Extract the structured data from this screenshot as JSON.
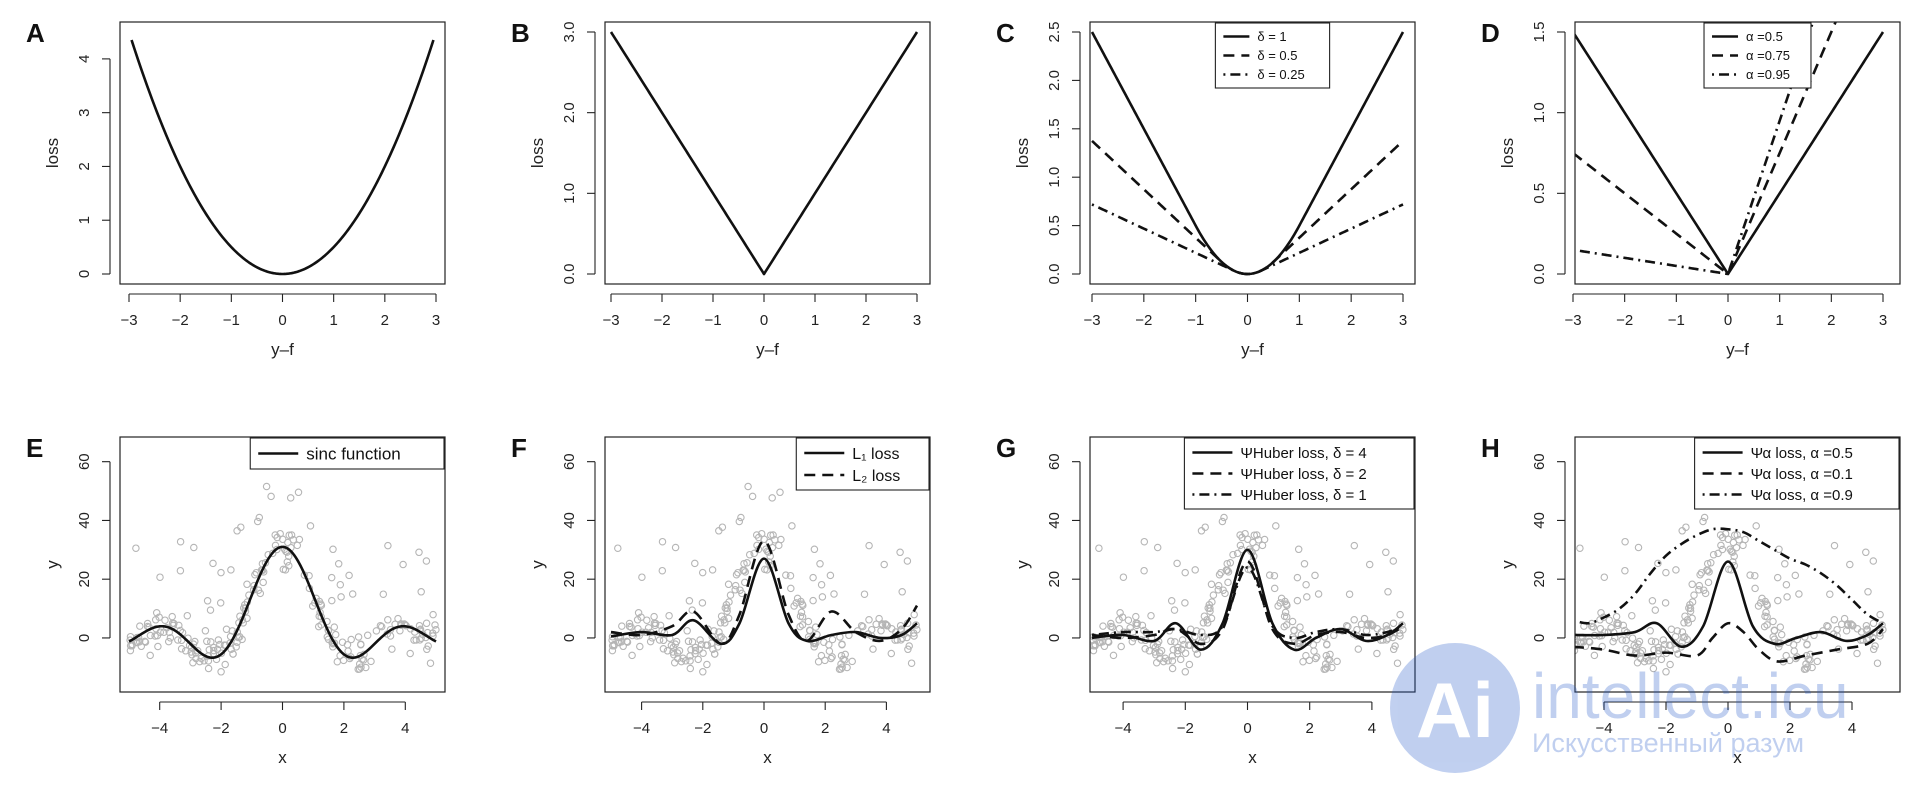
{
  "watermark": {
    "logo_letters": "Ai",
    "site": "intellect.icu",
    "tagline": "Искусственный разум"
  },
  "chart_data": [
    {
      "id": "A",
      "panel_label": "A",
      "type": "line",
      "xlabel": "y–f",
      "ylabel": "loss",
      "xlim": [
        -3,
        3
      ],
      "ylim": [
        0,
        4.5
      ],
      "xticks": [
        -3,
        -2,
        -1,
        0,
        1,
        2,
        3
      ],
      "xtick_labels": [
        "−3",
        "−2",
        "−1",
        "0",
        "1",
        "2",
        "3"
      ],
      "yticks": [
        0,
        1,
        2,
        3,
        4
      ],
      "ytick_labels": [
        "0",
        "1",
        "2",
        "3",
        "4"
      ],
      "series": [
        {
          "style": "solid",
          "function": "squared",
          "x": [
            -2.95,
            -2,
            -1,
            0,
            1,
            2,
            2.95
          ],
          "y": [
            4.35,
            2.0,
            0.5,
            0,
            0.5,
            2.0,
            4.35
          ]
        }
      ],
      "legend": []
    },
    {
      "id": "B",
      "panel_label": "B",
      "type": "line",
      "xlabel": "y–f",
      "ylabel": "loss",
      "xlim": [
        -3,
        3
      ],
      "ylim": [
        0,
        3
      ],
      "xticks": [
        -3,
        -2,
        -1,
        0,
        1,
        2,
        3
      ],
      "xtick_labels": [
        "−3",
        "−2",
        "−1",
        "0",
        "1",
        "2",
        "3"
      ],
      "yticks": [
        0,
        1,
        2,
        3
      ],
      "ytick_labels": [
        "0.0",
        "1.0",
        "2.0",
        "3.0"
      ],
      "series": [
        {
          "style": "solid",
          "function": "absolute",
          "x": [
            -3,
            0,
            3
          ],
          "y": [
            3,
            0,
            3
          ]
        }
      ],
      "legend": []
    },
    {
      "id": "C",
      "panel_label": "C",
      "type": "line",
      "xlabel": "y–f",
      "ylabel": "loss",
      "xlim": [
        -3,
        3
      ],
      "ylim": [
        0,
        2.5
      ],
      "xticks": [
        -3,
        -2,
        -1,
        0,
        1,
        2,
        3
      ],
      "xtick_labels": [
        "−3",
        "−2",
        "−1",
        "0",
        "1",
        "2",
        "3"
      ],
      "yticks": [
        0,
        0.5,
        1,
        1.5,
        2,
        2.5
      ],
      "ytick_labels": [
        "0.0",
        "0.5",
        "1.0",
        "1.5",
        "2.0",
        "2.5"
      ],
      "series": [
        {
          "name": "δ = 1",
          "style": "solid",
          "function": "huber",
          "delta": 1,
          "x": [
            -3,
            -1,
            0,
            1,
            3
          ],
          "y": [
            2.5,
            0.5,
            0,
            0.5,
            2.5
          ]
        },
        {
          "name": "δ = 0.5",
          "style": "dashed",
          "function": "huber",
          "delta": 0.5,
          "x": [
            -3,
            -0.5,
            0,
            0.5,
            3
          ],
          "y": [
            1.375,
            0.125,
            0,
            0.125,
            1.375
          ]
        },
        {
          "name": "δ = 0.25",
          "style": "dotdash",
          "function": "huber",
          "delta": 0.25,
          "x": [
            -3,
            -0.25,
            0,
            0.25,
            3
          ],
          "y": [
            0.719,
            0.031,
            0,
            0.031,
            0.719
          ]
        }
      ],
      "legend": [
        "δ = 1",
        "δ = 0.5",
        "δ = 0.25"
      ],
      "legend_position": "top-center",
      "legend_font_size": 13
    },
    {
      "id": "D",
      "panel_label": "D",
      "type": "line",
      "xlabel": "y–f",
      "ylabel": "loss",
      "xlim": [
        -3,
        3
      ],
      "ylim": [
        0,
        1.5
      ],
      "xticks": [
        -3,
        -2,
        -1,
        0,
        1,
        2,
        3
      ],
      "xtick_labels": [
        "−3",
        "−2",
        "−1",
        "0",
        "1",
        "2",
        "3"
      ],
      "yticks": [
        0,
        0.5,
        1,
        1.5
      ],
      "ytick_labels": [
        "0.0",
        "0.5",
        "1.0",
        "1.5"
      ],
      "series": [
        {
          "name": "α =0.5",
          "style": "solid",
          "function": "quantile",
          "alpha": 0.5,
          "x": [
            -3,
            0,
            3
          ],
          "y": [
            1.5,
            0,
            1.5
          ]
        },
        {
          "name": "α =0.75",
          "style": "dashed",
          "function": "quantile",
          "alpha": 0.75,
          "x": [
            -3,
            0,
            3
          ],
          "y": [
            0.75,
            0,
            2.25
          ]
        },
        {
          "name": "α =0.95",
          "style": "dotdash",
          "function": "quantile",
          "alpha": 0.95,
          "x": [
            -3,
            0,
            3
          ],
          "y": [
            0.15,
            0,
            2.85
          ]
        }
      ],
      "legend": [
        "α =0.5",
        "α =0.75",
        "α =0.95"
      ],
      "legend_position": "top-center",
      "legend_font_size": 13
    },
    {
      "id": "E",
      "panel_label": "E",
      "type": "scatter",
      "xlabel": "x",
      "ylabel": "y",
      "xlim": [
        -5,
        5
      ],
      "ylim": [
        -15,
        65
      ],
      "xticks": [
        -4,
        -2,
        0,
        2,
        4
      ],
      "xtick_labels": [
        "−4",
        "−2",
        "0",
        "2",
        "4"
      ],
      "yticks": [
        0,
        20,
        40,
        60
      ],
      "ytick_labels": [
        "0",
        "20",
        "40",
        "60"
      ],
      "scatter_points": "shared",
      "series": [
        {
          "name": "sinc function",
          "style": "solid",
          "function": "sinc",
          "x": [
            -5,
            -4.5,
            -3,
            -1.5,
            0,
            1.5,
            3,
            4.5,
            5
          ],
          "y": [
            0,
            2,
            -2,
            -6,
            31,
            -6,
            -2,
            2,
            0
          ]
        }
      ],
      "legend": [
        "sinc function"
      ],
      "legend_position": "top-right",
      "legend_font_size": 17
    },
    {
      "id": "F",
      "panel_label": "F",
      "type": "scatter",
      "xlabel": "x",
      "ylabel": "y",
      "xlim": [
        -5,
        5
      ],
      "ylim": [
        -15,
        65
      ],
      "xticks": [
        -4,
        -2,
        0,
        2,
        4
      ],
      "xtick_labels": [
        "−4",
        "−2",
        "0",
        "2",
        "4"
      ],
      "yticks": [
        0,
        20,
        40,
        60
      ],
      "ytick_labels": [
        "0",
        "20",
        "40",
        "60"
      ],
      "scatter_points": "shared",
      "series": [
        {
          "name": "L₁ loss",
          "style": "solid",
          "x": [
            -5,
            -4,
            -3,
            -2.3,
            -1.4,
            -0.8,
            0,
            0.8,
            1.4,
            2.2,
            3,
            3.8,
            4.5,
            5
          ],
          "y": [
            0.5,
            2,
            1,
            6,
            -2,
            5,
            27,
            5,
            -1,
            1,
            2,
            0,
            1,
            5
          ]
        },
        {
          "name": "L₂ loss",
          "style": "dashed",
          "x": [
            -5,
            -4,
            -3,
            -2.3,
            -1.4,
            -0.8,
            0,
            0.8,
            1.4,
            2.2,
            3,
            3.8,
            4.5,
            5
          ],
          "y": [
            2,
            1,
            4,
            9,
            -2,
            8,
            33,
            8,
            -1,
            9,
            2,
            -1,
            3,
            11
          ]
        }
      ],
      "legend": [
        "L₁ loss",
        "L₂ loss"
      ],
      "legend_position": "top-right",
      "legend_font_size": 16
    },
    {
      "id": "G",
      "panel_label": "G",
      "type": "scatter",
      "xlabel": "x",
      "ylabel": "y",
      "xlim": [
        -5,
        5
      ],
      "ylim": [
        -15,
        65
      ],
      "xticks": [
        -4,
        -2,
        0,
        2,
        4
      ],
      "xtick_labels": [
        "−4",
        "−2",
        "0",
        "2",
        "4"
      ],
      "yticks": [
        0,
        20,
        40,
        60
      ],
      "ytick_labels": [
        "0",
        "20",
        "40",
        "60"
      ],
      "scatter_points": "shared",
      "series": [
        {
          "name": "ΨHuber loss,  δ = 4",
          "style": "solid",
          "x": [
            -5,
            -4,
            -3,
            -2.3,
            -1.5,
            -0.8,
            0,
            0.8,
            1.5,
            2.2,
            3,
            3.8,
            4.5,
            5
          ],
          "y": [
            0,
            1,
            -1,
            5,
            -4,
            5,
            30,
            5,
            -4,
            0,
            3,
            -1,
            1,
            5
          ]
        },
        {
          "name": "ΨHuber loss,  δ = 2",
          "style": "dashed",
          "x": [
            -5,
            -4,
            -3,
            -2.3,
            -1.5,
            -0.8,
            0,
            0.8,
            1.5,
            2.2,
            3,
            3.8,
            4.5,
            5
          ],
          "y": [
            1,
            0,
            1,
            3,
            -2,
            3,
            26,
            3,
            -2,
            1,
            2,
            0,
            1,
            4
          ]
        },
        {
          "name": "ΨHuber loss,  δ = 1",
          "style": "dotdash",
          "x": [
            -5,
            -4,
            -3,
            -2.3,
            -1.5,
            -0.8,
            0,
            0.8,
            1.5,
            2.2,
            3,
            3.8,
            4.5,
            5
          ],
          "y": [
            1,
            2,
            2,
            3,
            1,
            4,
            24,
            4,
            0,
            2,
            3,
            1,
            2,
            4
          ]
        }
      ],
      "legend": [
        "ΨHuber loss,  δ = 4",
        "ΨHuber loss,  δ = 2",
        "ΨHuber loss,  δ = 1"
      ],
      "legend_position": "top-right",
      "legend_font_size": 15
    },
    {
      "id": "H",
      "panel_label": "H",
      "type": "scatter",
      "xlabel": "x",
      "ylabel": "y",
      "xlim": [
        -5,
        5
      ],
      "ylim": [
        -15,
        65
      ],
      "xticks": [
        -4,
        -2,
        0,
        2,
        4
      ],
      "xtick_labels": [
        "−4",
        "−2",
        "0",
        "2",
        "4"
      ],
      "yticks": [
        0,
        20,
        40,
        60
      ],
      "ytick_labels": [
        "0",
        "20",
        "40",
        "60"
      ],
      "scatter_points": "shared",
      "series": [
        {
          "name": "Ψα loss,  α =0.5",
          "style": "solid",
          "x": [
            -5,
            -4,
            -3,
            -2.3,
            -1.5,
            -0.8,
            0,
            0.8,
            1.5,
            2.2,
            3,
            3.8,
            4.5,
            5
          ],
          "y": [
            1,
            1,
            2,
            5,
            -3,
            4,
            26,
            4,
            -2,
            0,
            2,
            -1,
            1,
            5
          ]
        },
        {
          "name": "Ψα loss,  α =0.1",
          "style": "dashed",
          "x": [
            -5,
            -4,
            -3,
            -2,
            -1,
            -0.5,
            0,
            0.5,
            1,
            1.6,
            2.5,
            3.5,
            4.5,
            5
          ],
          "y": [
            -3,
            -4,
            -6,
            -5,
            -6,
            0,
            5,
            2,
            -4,
            -8,
            -6,
            -4,
            -2,
            3
          ]
        },
        {
          "name": "Ψα loss,  α =0.9",
          "style": "dotdash",
          "x": [
            -5,
            -4.5,
            -4,
            -3.5,
            -3,
            -2.5,
            -2,
            -1.5,
            -1,
            -0.5,
            0,
            0.5,
            1,
            1.5,
            2,
            2.5,
            3,
            3.5,
            4,
            4.5,
            5
          ],
          "y": [
            6,
            5,
            7,
            10,
            15,
            22,
            28,
            32,
            35,
            37,
            37,
            36,
            33,
            30,
            27,
            25,
            22,
            18,
            13,
            8,
            5
          ]
        }
      ],
      "legend": [
        "Ψα loss,  α =0.5",
        "Ψα loss,  α =0.1",
        "Ψα loss,  α =0.9"
      ],
      "legend_position": "top-right",
      "legend_font_size": 15
    }
  ]
}
